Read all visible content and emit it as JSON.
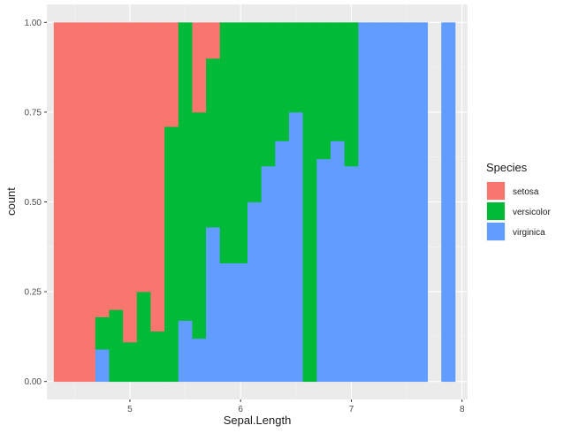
{
  "chart_data": {
    "type": "bar",
    "stacking": "fill",
    "binwidth": 0.125,
    "xlabel": "Sepal.Length",
    "ylabel": "count",
    "xlim": [
      4.25,
      8.05
    ],
    "ylim": [
      -0.05,
      1.05
    ],
    "x_ticks": [
      5,
      6,
      7,
      8
    ],
    "x_tick_labels": [
      "5",
      "6",
      "7",
      "8"
    ],
    "y_ticks": [
      0,
      0.25,
      0.5,
      0.75,
      1.0
    ],
    "y_tick_labels": [
      "0.00",
      "0.25",
      "0.50",
      "0.75",
      "1.00"
    ],
    "grid": true,
    "legend": {
      "title": "Species",
      "position": "right",
      "labels": [
        "setosa",
        "versicolor",
        "virginica"
      ],
      "colors": [
        "#F8766D",
        "#00BA38",
        "#619CFF"
      ]
    },
    "bins": [
      {
        "x": 4.375,
        "setosa": 1.0,
        "versicolor": 0.0,
        "virginica": 0.0
      },
      {
        "x": 4.5,
        "setosa": 1.0,
        "versicolor": 0.0,
        "virginica": 0.0
      },
      {
        "x": 4.625,
        "setosa": 1.0,
        "versicolor": 0.0,
        "virginica": 0.0
      },
      {
        "x": 4.75,
        "setosa": 0.82,
        "versicolor": 0.09,
        "virginica": 0.09
      },
      {
        "x": 4.875,
        "setosa": 0.8,
        "versicolor": 0.2,
        "virginica": 0.0
      },
      {
        "x": 5.0,
        "setosa": 0.89,
        "versicolor": 0.11,
        "virginica": 0.0
      },
      {
        "x": 5.125,
        "setosa": 0.75,
        "versicolor": 0.25,
        "virginica": 0.0
      },
      {
        "x": 5.25,
        "setosa": 0.86,
        "versicolor": 0.14,
        "virginica": 0.0
      },
      {
        "x": 5.375,
        "setosa": 0.29,
        "versicolor": 0.71,
        "virginica": 0.0
      },
      {
        "x": 5.5,
        "setosa": 0.0,
        "versicolor": 0.83,
        "virginica": 0.17
      },
      {
        "x": 5.625,
        "setosa": 0.25,
        "versicolor": 0.63,
        "virginica": 0.12
      },
      {
        "x": 5.75,
        "setosa": 0.1,
        "versicolor": 0.47,
        "virginica": 0.43
      },
      {
        "x": 5.875,
        "setosa": 0.0,
        "versicolor": 0.67,
        "virginica": 0.33
      },
      {
        "x": 6.0,
        "setosa": 0.0,
        "versicolor": 0.67,
        "virginica": 0.33
      },
      {
        "x": 6.125,
        "setosa": 0.0,
        "versicolor": 0.5,
        "virginica": 0.5
      },
      {
        "x": 6.25,
        "setosa": 0.0,
        "versicolor": 0.4,
        "virginica": 0.6
      },
      {
        "x": 6.375,
        "setosa": 0.0,
        "versicolor": 0.33,
        "virginica": 0.67
      },
      {
        "x": 6.5,
        "setosa": 0.0,
        "versicolor": 0.25,
        "virginica": 0.75
      },
      {
        "x": 6.625,
        "setosa": 0.0,
        "versicolor": 1.0,
        "virginica": 0.0
      },
      {
        "x": 6.75,
        "setosa": 0.0,
        "versicolor": 0.38,
        "virginica": 0.62
      },
      {
        "x": 6.875,
        "setosa": 0.0,
        "versicolor": 0.33,
        "virginica": 0.67
      },
      {
        "x": 7.0,
        "setosa": 0.0,
        "versicolor": 0.4,
        "virginica": 0.6
      },
      {
        "x": 7.125,
        "setosa": 0.0,
        "versicolor": 0.0,
        "virginica": 1.0
      },
      {
        "x": 7.25,
        "setosa": 0.0,
        "versicolor": 0.0,
        "virginica": 1.0
      },
      {
        "x": 7.375,
        "setosa": 0.0,
        "versicolor": 0.0,
        "virginica": 1.0
      },
      {
        "x": 7.5,
        "setosa": 0.0,
        "versicolor": 0.0,
        "virginica": 1.0
      },
      {
        "x": 7.625,
        "setosa": 0.0,
        "versicolor": 0.0,
        "virginica": 1.0
      },
      {
        "x": 7.75,
        "setosa": 0.0,
        "versicolor": 0.0,
        "virginica": 0.0
      },
      {
        "x": 7.875,
        "setosa": 0.0,
        "versicolor": 0.0,
        "virginica": 1.0
      }
    ]
  }
}
